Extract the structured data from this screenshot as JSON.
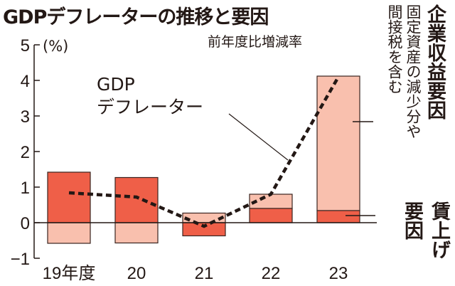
{
  "chart_data": {
    "type": "bar",
    "title": "GDPデフレーターの推移と要因",
    "subtitle": "前年度比増減率",
    "ylabel": "(%)",
    "ylim": [
      -1,
      5
    ],
    "yticks": [
      "5",
      "4",
      "3",
      "2",
      "1",
      "0",
      "−1"
    ],
    "ytick_values": [
      5,
      4,
      3,
      2,
      1,
      0,
      -1
    ],
    "categories": [
      "19年度",
      "20",
      "21",
      "22",
      "23"
    ],
    "stacked": true,
    "grid": false,
    "series": [
      {
        "name": "賃上げ要因",
        "kind": "bar",
        "color": "#ef5f48",
        "values": [
          1.42,
          1.27,
          -0.37,
          0.4,
          0.34
        ]
      },
      {
        "name": "企業収益要因",
        "note": "固定資産の減少分や間接税を含む",
        "kind": "bar",
        "color": "#f9c0ae",
        "values": [
          -0.58,
          -0.57,
          0.27,
          0.4,
          3.78
        ]
      },
      {
        "name": "GDPデフレーター",
        "kind": "line",
        "style": "dashed",
        "color": "#231815",
        "values": [
          0.84,
          0.72,
          -0.1,
          0.8,
          4.1
        ]
      }
    ],
    "annotations": {
      "line_label_1": "GDP",
      "line_label_2": "デフレーター",
      "profit_label": "企業収益要因",
      "profit_note": "固定資産の減少分や間接税を含む",
      "wage_label_1": "賃上げ",
      "wage_label_2": "要因"
    }
  }
}
